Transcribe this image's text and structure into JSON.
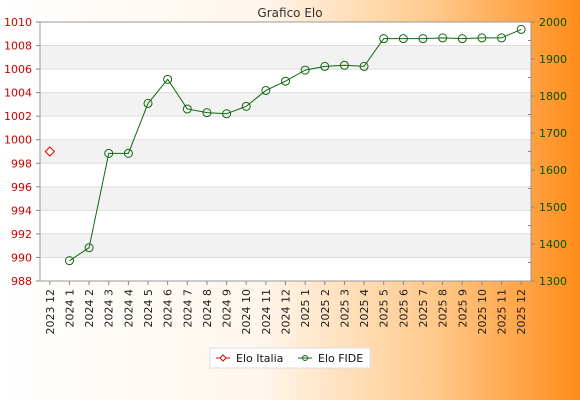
{
  "chart_data": {
    "type": "line",
    "title": "Grafico Elo",
    "categories": [
      "2023 12",
      "2024 1",
      "2024 2",
      "2024 3",
      "2024 4",
      "2024 5",
      "2024 6",
      "2024 7",
      "2024 8",
      "2024 9",
      "2024 10",
      "2024 11",
      "2024 12",
      "2025 1",
      "2025 2",
      "2025 3",
      "2025 4",
      "2025 5",
      "2025 6",
      "2025 7",
      "2025 8",
      "2025 9",
      "2025 10",
      "2025 11",
      "2025 12"
    ],
    "yleft": {
      "min": 988,
      "max": 1010,
      "step": 2,
      "ticks": [
        "988",
        "990",
        "992",
        "994",
        "996",
        "998",
        "1000",
        "1002",
        "1004",
        "1006",
        "1008",
        "1010"
      ]
    },
    "yright": {
      "min": 1300,
      "max": 2000,
      "step": 100,
      "ticks": [
        "1300",
        "1400",
        "1500",
        "1600",
        "1700",
        "1800",
        "1900",
        "2000"
      ]
    },
    "grid": true,
    "legend_position": "bottom",
    "series": [
      {
        "name": "Elo Italia",
        "axis": "left",
        "color": "#dd0000",
        "marker": "diamond",
        "values": [
          999,
          null,
          null,
          null,
          null,
          null,
          null,
          null,
          null,
          null,
          null,
          null,
          null,
          null,
          null,
          null,
          null,
          null,
          null,
          null,
          null,
          null,
          null,
          null,
          null
        ]
      },
      {
        "name": "Elo FIDE",
        "axis": "right",
        "color": "#116611",
        "marker": "circle",
        "values": [
          null,
          1355,
          1390,
          1645,
          1645,
          1780,
          1845,
          1765,
          1755,
          1752,
          1772,
          1815,
          1840,
          1870,
          1880,
          1883,
          1880,
          1955,
          1955,
          1955,
          1957,
          1955,
          1957,
          1957,
          1980
        ]
      }
    ]
  }
}
